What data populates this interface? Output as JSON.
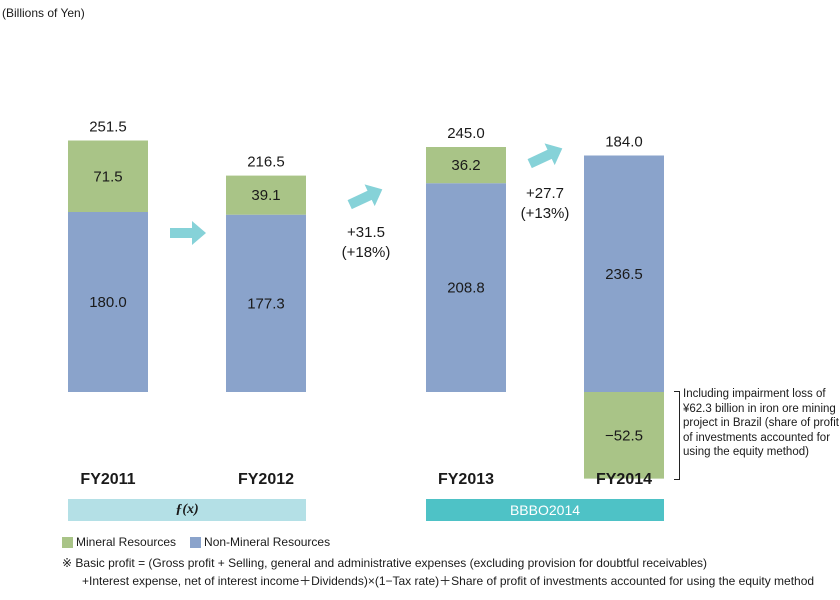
{
  "unit_label": "(Billions of Yen)",
  "chart_data": {
    "type": "bar",
    "stacked": true,
    "categories": [
      "FY2011",
      "FY2012",
      "FY2013",
      "FY2014"
    ],
    "series": [
      {
        "name": "Non-Mineral Resources",
        "values": [
          180.0,
          177.3,
          208.8,
          236.5
        ],
        "labels": [
          "180.0",
          "177.3",
          "208.8",
          "236.5"
        ]
      },
      {
        "name": "Mineral Resources",
        "values": [
          71.5,
          39.1,
          36.2,
          -52.5
        ],
        "labels": [
          "71.5",
          "39.1",
          "36.2",
          "−52.5"
        ]
      }
    ],
    "totals": [
      "251.5",
      "216.5",
      "245.0",
      "184.0"
    ],
    "changes": [
      {
        "text1": "+31.5",
        "text2": "(+18%)"
      },
      {
        "text1": "+27.7",
        "text2": "(+13%)"
      }
    ],
    "colors": {
      "Non-Mineral Resources": "#8aa3cb",
      "Mineral Resources": "#a9c487",
      "arrow": "#86d2d8"
    }
  },
  "note": "Including impairment loss of ¥62.3 billion in iron ore mining project in Brazil (share of profit of investments accounted for using the equity method)",
  "bands": {
    "left": "ƒ(x)",
    "right": "BBBO2014"
  },
  "legend": {
    "mineral": "Mineral Resources",
    "non_mineral": "Non-Mineral Resources"
  },
  "footnote": {
    "line1": "※ Basic profit = (Gross profit + Selling, general and administrative expenses (excluding provision for doubtful receivables)",
    "line2": "+Interest expense, net of interest income＋Dividends)×(1−Tax rate)＋Share of profit of investments accounted for using the equity method"
  }
}
